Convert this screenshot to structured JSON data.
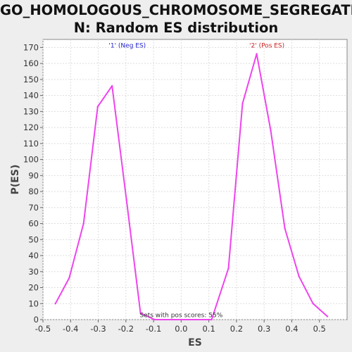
{
  "chart_data": {
    "type": "line",
    "title_line1": "GO_HOMOLOGOUS_CHROMOSOME_SEGREGATIO",
    "title_line2": "N: Random ES distribution",
    "xlabel": "ES",
    "ylabel": "P(ES)",
    "xlim": [
      -0.5,
      0.6
    ],
    "ylim": [
      0,
      175
    ],
    "xticks": [
      -0.5,
      -0.4,
      -0.3,
      -0.2,
      -0.1,
      0.0,
      0.1,
      0.2,
      0.3,
      0.4,
      0.5
    ],
    "xtick_labels": [
      "-0.5",
      "-0.4",
      "-0.3",
      "-0.2",
      "-0.1",
      "0.0",
      "0.1",
      "0.2",
      "0.3",
      "0.4",
      "0.5"
    ],
    "yticks": [
      0,
      10,
      20,
      30,
      40,
      50,
      60,
      70,
      80,
      90,
      100,
      110,
      120,
      130,
      140,
      150,
      160,
      170
    ],
    "grid": true,
    "series": [
      {
        "color": "#ee44ee",
        "x": [
          -0.455,
          -0.405,
          -0.353,
          -0.302,
          -0.25,
          -0.198,
          -0.147,
          -0.096,
          0.11,
          0.171,
          0.222,
          0.273,
          0.324,
          0.375,
          0.426,
          0.477,
          0.529
        ],
        "y": [
          10,
          26,
          60,
          133,
          146,
          75,
          4,
          0,
          0,
          32,
          135,
          166,
          118,
          57,
          27,
          10,
          2
        ]
      }
    ],
    "annotations": [
      {
        "text": "'1' (Neg ES)",
        "x": -0.195,
        "y": 170,
        "color": "#2222cc"
      },
      {
        "text": "'2' (Pos ES)",
        "x": 0.31,
        "y": 170,
        "color": "#cc2222"
      },
      {
        "text": "Sets with pos scores: 55%",
        "x": 0.0,
        "y": 1.5,
        "color": "#333333"
      }
    ]
  }
}
